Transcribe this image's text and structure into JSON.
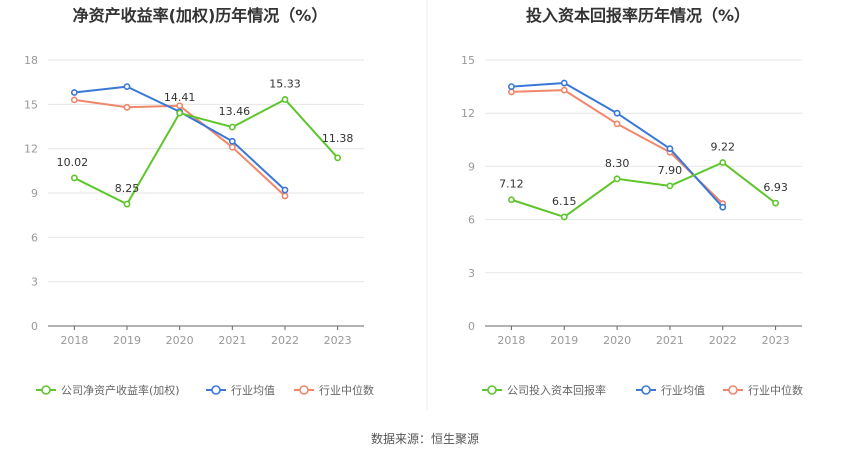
{
  "colors": {
    "company": "#5ec52c",
    "avg": "#3a78d8",
    "median": "#f0876a",
    "grid": "#e6e6e6",
    "axis": "#666666",
    "divider": "#eeeeee"
  },
  "source": "数据来源：恒生聚源",
  "chart_data": [
    {
      "type": "line",
      "title": "净资产收益率(加权)历年情况（%）",
      "categories": [
        "2018",
        "2019",
        "2020",
        "2021",
        "2022",
        "2023"
      ],
      "ylim": [
        0,
        18
      ],
      "yticks": [
        0,
        3,
        6,
        9,
        12,
        15,
        18
      ],
      "ytick_labels": [
        "0",
        "3",
        "6",
        "9",
        "12",
        "15",
        "18"
      ],
      "grid": true,
      "legend_position": "bottom",
      "series": [
        {
          "name": "公司净资产收益率(加权)",
          "color_key": "company",
          "values": [
            10.02,
            8.25,
            14.41,
            13.46,
            15.33,
            11.38
          ],
          "data_labels": [
            "10.02",
            "8.25",
            "14.41",
            "13.46",
            "15.33",
            "11.38"
          ]
        },
        {
          "name": "行业均值",
          "color_key": "avg",
          "values": [
            15.8,
            16.2,
            14.5,
            12.5,
            9.2,
            null
          ]
        },
        {
          "name": "行业中位数",
          "color_key": "median",
          "values": [
            15.3,
            14.8,
            14.9,
            12.1,
            8.8,
            null
          ]
        }
      ]
    },
    {
      "type": "line",
      "title": "投入资本回报率历年情况（%）",
      "categories": [
        "2018",
        "2019",
        "2020",
        "2021",
        "2022",
        "2023"
      ],
      "ylim": [
        0,
        15
      ],
      "yticks": [
        0,
        3,
        6,
        9,
        12,
        15
      ],
      "ytick_labels": [
        "0",
        "3",
        "6",
        "9",
        "12",
        "15"
      ],
      "grid": true,
      "legend_position": "bottom",
      "series": [
        {
          "name": "公司投入资本回报率",
          "color_key": "company",
          "values": [
            7.12,
            6.15,
            8.3,
            7.9,
            9.22,
            6.93
          ],
          "data_labels": [
            "7.12",
            "6.15",
            "8.30",
            "7.90",
            "9.22",
            "6.93"
          ]
        },
        {
          "name": "行业均值",
          "color_key": "avg",
          "values": [
            13.5,
            13.7,
            12.0,
            10.0,
            6.7,
            null
          ]
        },
        {
          "name": "行业中位数",
          "color_key": "median",
          "values": [
            13.2,
            13.3,
            11.4,
            9.8,
            6.9,
            null
          ]
        }
      ]
    }
  ]
}
